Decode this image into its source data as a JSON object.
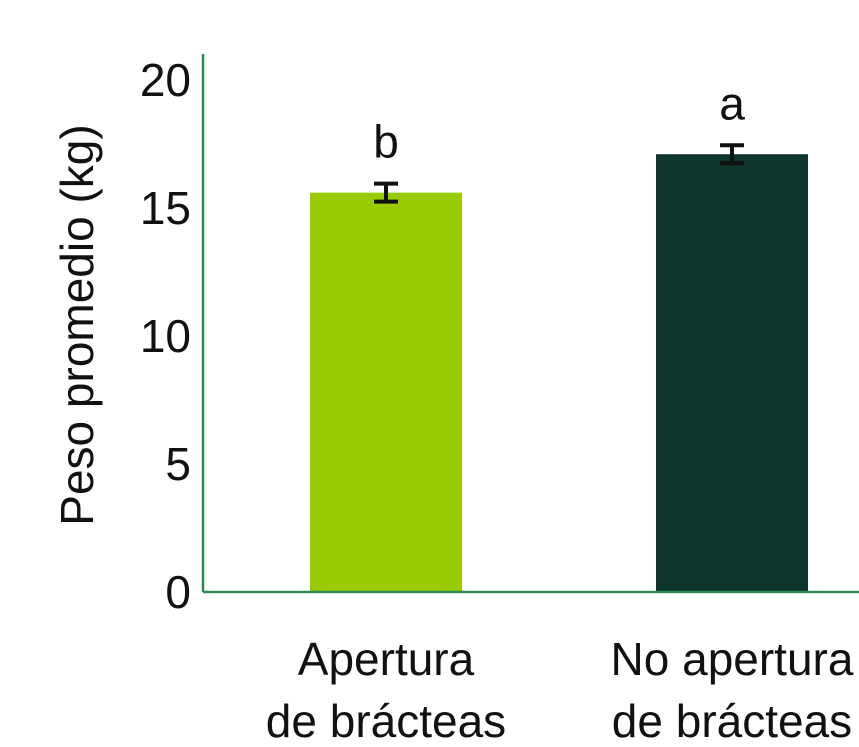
{
  "chart_data": {
    "type": "bar",
    "title": "",
    "xlabel": "",
    "ylabel": "Peso promedio (kg)",
    "ylim": [
      0,
      20
    ],
    "yticks": [
      0,
      5,
      10,
      15,
      20
    ],
    "grid": false,
    "legend": "none",
    "axis_color": "#2e8b57",
    "categories": [
      [
        "Apertura",
        "de brácteas"
      ],
      [
        "No apertura",
        "de brácteas"
      ]
    ],
    "values": [
      15.6,
      17.1
    ],
    "error": [
      0.35,
      0.35
    ],
    "significance_letters": [
      "b",
      "a"
    ],
    "colors": [
      "#99cc00",
      "#0d352c"
    ]
  }
}
